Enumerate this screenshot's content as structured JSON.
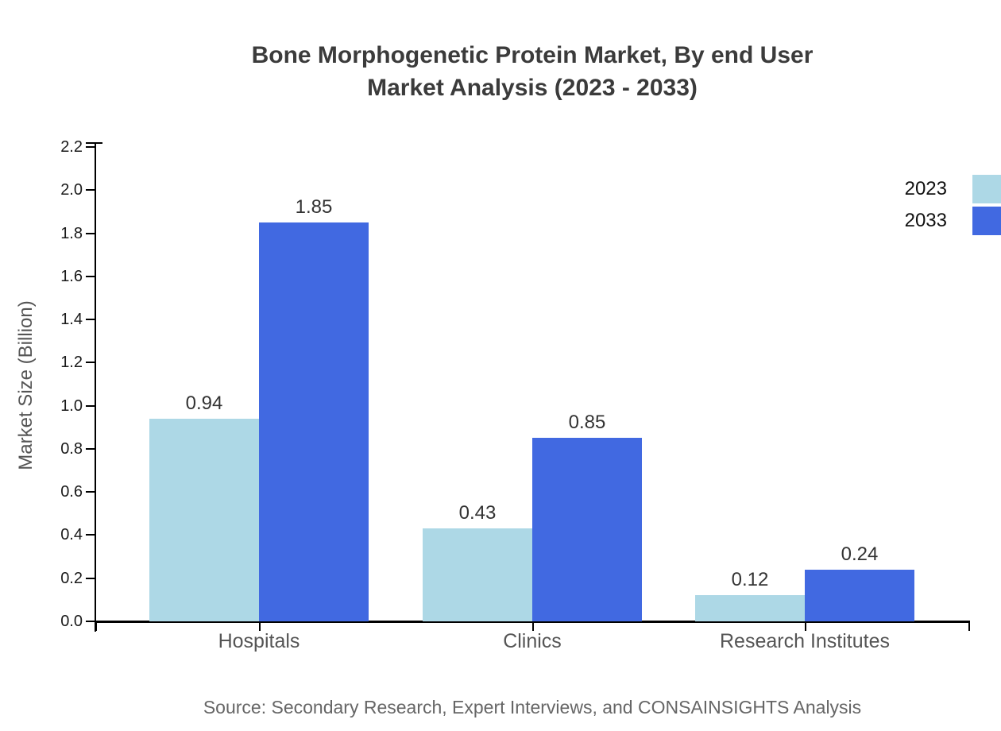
{
  "chart_data": {
    "type": "bar",
    "title": "Bone Morphogenetic Protein Market, By end User Market Analysis (2023 - 2033)",
    "title_lines": [
      "Bone Morphogenetic Protein Market, By end User",
      "Market Analysis (2023 - 2033)"
    ],
    "categories": [
      "Hospitals",
      "Clinics",
      "Research Institutes"
    ],
    "series": [
      {
        "name": "2023",
        "color": "#ADD8E6",
        "values": [
          0.94,
          0.43,
          0.12
        ]
      },
      {
        "name": "2033",
        "color": "#4169E1",
        "values": [
          1.85,
          0.85,
          0.24
        ]
      }
    ],
    "xlabel": "",
    "ylabel": "Market Size (Billion)",
    "ylim": [
      0.0,
      2.2
    ],
    "ytick_step": 0.2,
    "ytick_labels": [
      "0.0",
      "0.2",
      "0.4",
      "0.6",
      "0.8",
      "1.0",
      "1.2",
      "1.4",
      "1.6",
      "1.8",
      "2.0",
      "2.2"
    ],
    "value_labels": [
      "0.94",
      "1.85",
      "0.43",
      "0.85",
      "0.12",
      "0.24"
    ],
    "grid": false,
    "legend_position": "top-right",
    "colors": {
      "title": "#3B3B3B",
      "axis_labels": "#555555",
      "tick_labels": "#1A1A1A",
      "value_labels": "#333333",
      "legend_text": "#111111",
      "source_text": "#666666",
      "axis": "#000000"
    }
  },
  "source": {
    "text": "Source: Secondary Research, Expert Interviews, and CONSAINSIGHTS Analysis"
  }
}
